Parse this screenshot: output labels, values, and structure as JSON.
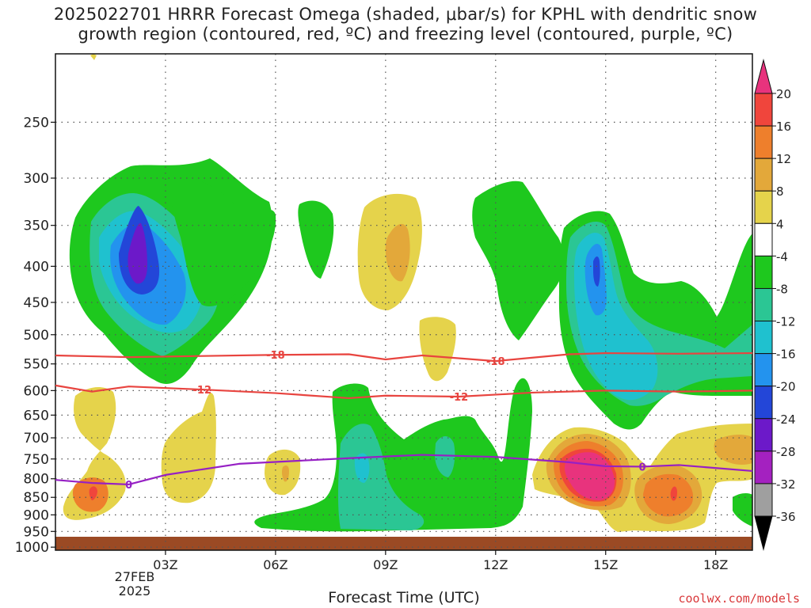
{
  "title": "2025022701 HRRR Forecast Omega (shaded, μbar/s) for KPHL with dendritic snow\ngrowth region (contoured, red, ºC) and freezing level (contoured, purple, ºC)",
  "credit": "coolwx.com/models",
  "chart_data": {
    "type": "heatmap",
    "xlabel": "Forecast Time (UTC)",
    "ylabel": "",
    "x_ticks": [
      "03Z",
      "06Z",
      "09Z",
      "12Z",
      "15Z",
      "18Z"
    ],
    "x_tick_hours": [
      3,
      6,
      9,
      12,
      15,
      18
    ],
    "x_range_hours": [
      0,
      19
    ],
    "date_label": "27FEB\n2025",
    "y_ticks": [
      250,
      300,
      350,
      400,
      450,
      500,
      550,
      600,
      650,
      700,
      750,
      800,
      850,
      900,
      950,
      1000
    ],
    "y_range_hPa": [
      200,
      1010
    ],
    "grid": true,
    "colorbar": {
      "labels": [
        "20",
        "16",
        "12",
        "8",
        "4",
        "-4",
        "-8",
        "-12",
        "-16",
        "-20",
        "-24",
        "-28",
        "-32",
        "-36"
      ],
      "colors": [
        "#e8337d",
        "#f0453c",
        "#ee7f2c",
        "#e3a83a",
        "#e5d34b",
        "#ffffff",
        "#1ec81e",
        "#2bc694",
        "#1fc1cf",
        "#2393ee",
        "#2346d8",
        "#6c19c9",
        "#a421c0",
        "#9f9f9f",
        "#000000"
      ]
    },
    "series": [
      {
        "name": "-18",
        "color": "#e8443f",
        "points": [
          [
            0,
            535
          ],
          [
            2,
            538
          ],
          [
            4,
            536
          ],
          [
            6,
            534
          ],
          [
            8,
            533
          ],
          [
            9,
            542
          ],
          [
            10,
            535
          ],
          [
            12,
            545
          ],
          [
            14,
            533
          ],
          [
            15,
            531
          ],
          [
            17,
            532
          ],
          [
            19,
            531
          ]
        ]
      },
      {
        "name": "-12",
        "color": "#e8443f",
        "points": [
          [
            0,
            590
          ],
          [
            1,
            602
          ],
          [
            2,
            592
          ],
          [
            4,
            598
          ],
          [
            6,
            605
          ],
          [
            8,
            615
          ],
          [
            9,
            610
          ],
          [
            11,
            612
          ],
          [
            13,
            604
          ],
          [
            15,
            600
          ],
          [
            17,
            602
          ],
          [
            19,
            600
          ]
        ]
      },
      {
        "name": "0",
        "color": "#9620c4",
        "points": [
          [
            0,
            803
          ],
          [
            1,
            811
          ],
          [
            2,
            815
          ],
          [
            3,
            790
          ],
          [
            5,
            762
          ],
          [
            8,
            748
          ],
          [
            10,
            740
          ],
          [
            12,
            745
          ],
          [
            14,
            758
          ],
          [
            15,
            768
          ],
          [
            16,
            769
          ],
          [
            17,
            765
          ],
          [
            19,
            780
          ]
        ]
      }
    ]
  }
}
